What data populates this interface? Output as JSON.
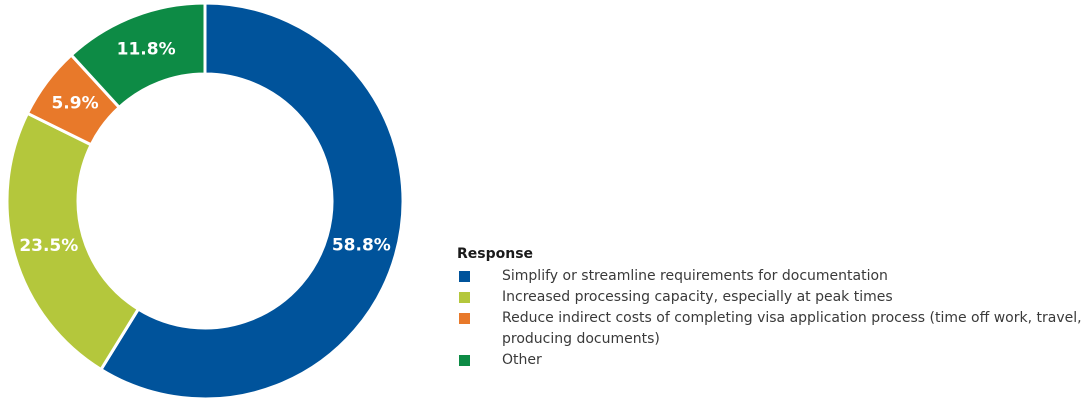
{
  "chart_data": {
    "type": "pie",
    "variant": "donut",
    "legend_title": "Response",
    "legend_position": "right",
    "slices": [
      {
        "label": "Simplify or streamline requirements for documentation",
        "value": 58.8,
        "display": "58.8%",
        "color": "#00539b"
      },
      {
        "label": "Increased processing capacity, especially at peak times",
        "value": 23.5,
        "display": "23.5%",
        "color": "#b4c73c"
      },
      {
        "label": "Reduce indirect costs of completing visa application process (time off work, travel, producing documents)",
        "value": 5.9,
        "display": "5.9%",
        "color": "#e8792a"
      },
      {
        "label": "Other",
        "value": 11.8,
        "display": "11.8%",
        "color": "#0d8b45"
      }
    ]
  }
}
